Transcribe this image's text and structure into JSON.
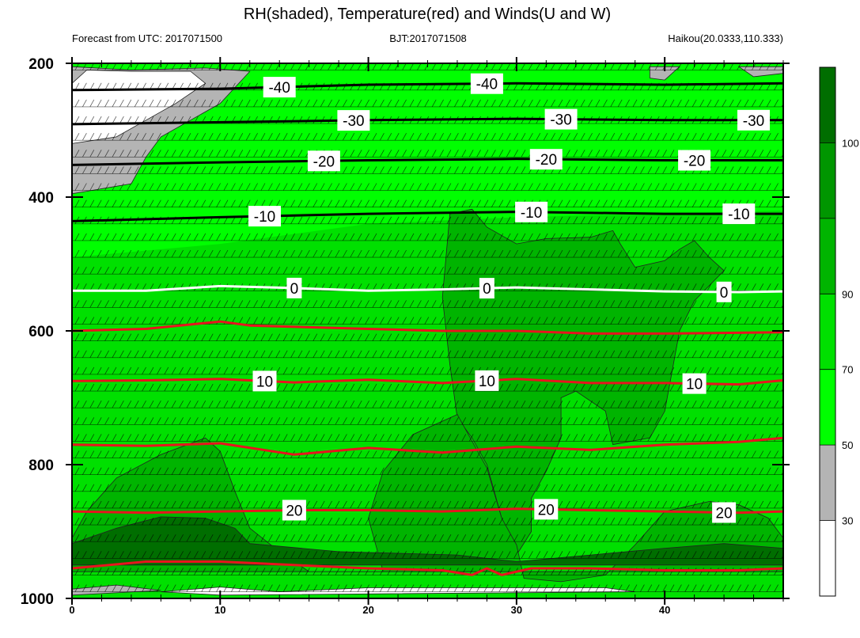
{
  "chart_data": {
    "type": "heatmap",
    "title": "RH(shaded), Temperature(red) and Winds(U and W)",
    "subtitle_left": "Forecast from UTC: 2017071500",
    "subtitle_center": "BJT:2017071508",
    "subtitle_right": "Haikou(20.0333,110.333)",
    "x": {
      "ticks": [
        0,
        10,
        20,
        30,
        40
      ],
      "range": [
        0,
        48
      ]
    },
    "y": {
      "ticks": [
        200,
        400,
        600,
        800,
        1000
      ],
      "range": [
        200,
        1000
      ],
      "inverted": true
    },
    "colorbar": {
      "tick_labels": [
        "30",
        "50",
        "70",
        "90",
        "100"
      ],
      "colors": [
        "#ffffff",
        "#b4b4b4",
        "#00ff00",
        "#00e000",
        "#00b400",
        "#009600",
        "#006e00"
      ]
    },
    "rh_regions": [
      {
        "level": "gray",
        "points": [
          [
            0,
            205
          ],
          [
            4,
            210
          ],
          [
            9,
            207
          ],
          [
            12,
            212
          ],
          [
            10,
            260
          ],
          [
            8,
            285
          ],
          [
            6,
            310
          ],
          [
            5,
            340
          ],
          [
            4,
            380
          ],
          [
            0,
            395
          ]
        ]
      },
      {
        "level": "white",
        "points": [
          [
            1,
            210
          ],
          [
            4,
            212
          ],
          [
            8,
            212
          ],
          [
            9,
            230
          ],
          [
            7,
            260
          ],
          [
            5,
            285
          ],
          [
            3,
            310
          ],
          [
            0,
            320
          ],
          [
            0,
            230
          ]
        ]
      },
      {
        "level": "gray",
        "points": [
          [
            39,
            205
          ],
          [
            41,
            205
          ],
          [
            40,
            225
          ],
          [
            39,
            222
          ]
        ]
      },
      {
        "level": "gray",
        "points": [
          [
            45,
            205
          ],
          [
            48,
            205
          ],
          [
            48,
            215
          ],
          [
            46,
            220
          ]
        ]
      },
      {
        "level": "gray",
        "points": [
          [
            0,
            986
          ],
          [
            3,
            980
          ],
          [
            6,
            988
          ],
          [
            0,
            995
          ]
        ]
      },
      {
        "level": "white",
        "points": [
          [
            6,
            990
          ],
          [
            10,
            983
          ],
          [
            14,
            990
          ],
          [
            20,
            984
          ],
          [
            36,
            984
          ],
          [
            38,
            990
          ],
          [
            10,
            995
          ]
        ]
      },
      {
        "level": "dark",
        "points": [
          [
            25.5,
            425
          ],
          [
            27,
            418
          ],
          [
            28,
            445
          ],
          [
            30,
            470
          ],
          [
            32,
            462
          ],
          [
            35,
            460
          ],
          [
            36.5,
            450
          ],
          [
            37,
            470
          ],
          [
            38,
            505
          ],
          [
            40,
            495
          ],
          [
            41,
            478
          ],
          [
            42,
            465
          ],
          [
            43,
            490
          ],
          [
            44,
            510
          ],
          [
            42,
            555
          ],
          [
            41,
            600
          ],
          [
            40,
            720
          ],
          [
            39,
            760
          ],
          [
            36.5,
            770
          ],
          [
            36,
            720
          ],
          [
            34,
            690
          ],
          [
            33,
            700
          ],
          [
            33,
            760
          ],
          [
            32,
            810
          ],
          [
            31,
            850
          ],
          [
            31,
            900
          ],
          [
            30,
            935
          ],
          [
            29,
            880
          ],
          [
            28,
            800
          ],
          [
            27,
            760
          ],
          [
            26,
            730
          ],
          [
            25.5,
            650
          ],
          [
            25,
            550
          ]
        ]
      },
      {
        "level": "dark",
        "points": [
          [
            0,
            910
          ],
          [
            1,
            870
          ],
          [
            3,
            820
          ],
          [
            6,
            785
          ],
          [
            9,
            760
          ],
          [
            10,
            780
          ],
          [
            11,
            840
          ],
          [
            12,
            895
          ],
          [
            14,
            930
          ],
          [
            16,
            960
          ],
          [
            21,
            960
          ],
          [
            20,
            880
          ],
          [
            21,
            810
          ],
          [
            23,
            755
          ],
          [
            26,
            725
          ],
          [
            28,
            805
          ],
          [
            29,
            880
          ],
          [
            30,
            920
          ],
          [
            30.5,
            970
          ],
          [
            33,
            975
          ],
          [
            36,
            965
          ],
          [
            38,
            920
          ],
          [
            40,
            870
          ],
          [
            43,
            855
          ],
          [
            45,
            860
          ],
          [
            47,
            880
          ],
          [
            48,
            910
          ],
          [
            48,
            960
          ],
          [
            0,
            960
          ]
        ]
      },
      {
        "level": "darkest",
        "points": [
          [
            0,
            918
          ],
          [
            3,
            895
          ],
          [
            6,
            878
          ],
          [
            9,
            880
          ],
          [
            11,
            895
          ],
          [
            12,
            918
          ],
          [
            18,
            930
          ],
          [
            26,
            935
          ],
          [
            30,
            945
          ],
          [
            35,
            935
          ],
          [
            40,
            925
          ],
          [
            44,
            918
          ],
          [
            48,
            925
          ],
          [
            48,
            950
          ],
          [
            0,
            950
          ]
        ]
      }
    ],
    "isotherms": [
      {
        "label": "-40",
        "color": "black",
        "label_x": [
          14,
          28
        ],
        "points": [
          [
            0,
            240
          ],
          [
            10,
            238
          ],
          [
            20,
            232
          ],
          [
            30,
            230
          ],
          [
            40,
            232
          ],
          [
            48,
            230
          ]
        ]
      },
      {
        "label": "-30",
        "color": "black",
        "label_x": [
          19,
          33,
          46
        ],
        "points": [
          [
            0,
            291
          ],
          [
            10,
            288
          ],
          [
            20,
            285
          ],
          [
            30,
            283
          ],
          [
            40,
            285
          ],
          [
            48,
            285
          ]
        ]
      },
      {
        "label": "-20",
        "color": "black",
        "label_x": [
          17,
          32,
          42
        ],
        "points": [
          [
            0,
            352
          ],
          [
            10,
            348
          ],
          [
            20,
            345
          ],
          [
            30,
            343
          ],
          [
            40,
            345
          ],
          [
            48,
            345
          ]
        ]
      },
      {
        "label": "-10",
        "color": "black",
        "label_x": [
          13,
          31,
          45
        ],
        "points": [
          [
            0,
            436
          ],
          [
            10,
            430
          ],
          [
            20,
            425
          ],
          [
            30,
            422
          ],
          [
            40,
            425
          ],
          [
            48,
            425
          ]
        ]
      },
      {
        "label": "0",
        "color": "white",
        "label_x": [
          15,
          28,
          44
        ],
        "points": [
          [
            0,
            540
          ],
          [
            5,
            540
          ],
          [
            10,
            533
          ],
          [
            15,
            536
          ],
          [
            20,
            540
          ],
          [
            25,
            538
          ],
          [
            30,
            535
          ],
          [
            35,
            538
          ],
          [
            40,
            541
          ],
          [
            45,
            542
          ],
          [
            48,
            541
          ]
        ]
      },
      {
        "label": "",
        "color": "red",
        "label_x": [],
        "points": [
          [
            0,
            600
          ],
          [
            5,
            597
          ],
          [
            10,
            586
          ],
          [
            12,
            592
          ],
          [
            20,
            597
          ],
          [
            25,
            600
          ],
          [
            30,
            600
          ],
          [
            35,
            604
          ],
          [
            40,
            604
          ],
          [
            48,
            602
          ]
        ]
      },
      {
        "label": "10",
        "color": "red",
        "label_x": [
          13,
          28,
          42
        ],
        "points": [
          [
            0,
            675
          ],
          [
            5,
            674
          ],
          [
            10,
            672
          ],
          [
            15,
            677
          ],
          [
            20,
            673
          ],
          [
            25,
            678
          ],
          [
            30,
            672
          ],
          [
            35,
            678
          ],
          [
            40,
            678
          ],
          [
            45,
            680
          ],
          [
            48,
            674
          ]
        ]
      },
      {
        "label": "",
        "color": "red",
        "label_x": [],
        "points": [
          [
            0,
            770
          ],
          [
            5,
            772
          ],
          [
            10,
            768
          ],
          [
            15,
            785
          ],
          [
            20,
            775
          ],
          [
            25,
            782
          ],
          [
            30,
            773
          ],
          [
            35,
            778
          ],
          [
            40,
            770
          ],
          [
            45,
            766
          ],
          [
            48,
            760
          ]
        ]
      },
      {
        "label": "20",
        "color": "red",
        "label_x": [
          15,
          32,
          44
        ],
        "points": [
          [
            0,
            870
          ],
          [
            5,
            872
          ],
          [
            10,
            870
          ],
          [
            15,
            868
          ],
          [
            20,
            868
          ],
          [
            25,
            870
          ],
          [
            30,
            866
          ],
          [
            35,
            868
          ],
          [
            40,
            870
          ],
          [
            45,
            872
          ],
          [
            48,
            870
          ]
        ]
      },
      {
        "label": "",
        "color": "red",
        "label_x": [],
        "points": [
          [
            0,
            955
          ],
          [
            5,
            945
          ],
          [
            10,
            945
          ],
          [
            15,
            950
          ],
          [
            20,
            955
          ],
          [
            25,
            958
          ],
          [
            27,
            965
          ],
          [
            28,
            955
          ],
          [
            29,
            965
          ],
          [
            31,
            955
          ],
          [
            35,
            955
          ],
          [
            40,
            958
          ],
          [
            45,
            958
          ],
          [
            48,
            955
          ]
        ]
      }
    ],
    "wind_levels": [
      210,
      240,
      265,
      290,
      315,
      340,
      365,
      390,
      415,
      440,
      465,
      490,
      515,
      540,
      565,
      590,
      615,
      640,
      665,
      690,
      715,
      740,
      765,
      790,
      815,
      840,
      865,
      890,
      915,
      940,
      965,
      990
    ]
  }
}
